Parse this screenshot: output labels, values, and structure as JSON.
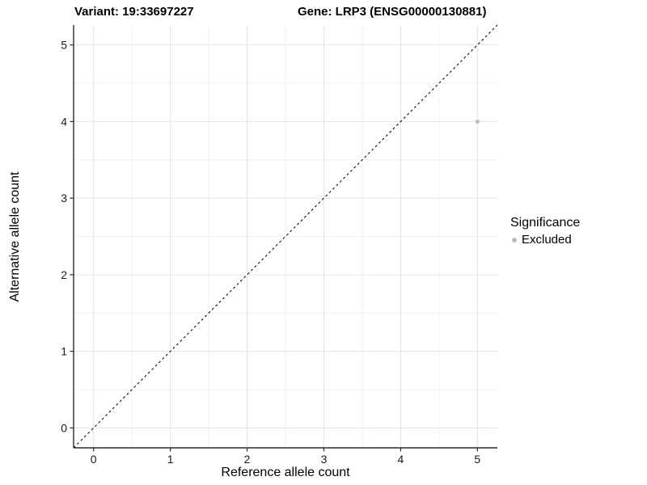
{
  "titles": {
    "left": "Variant: 19:33697227",
    "right": "Gene: LRP3 (ENSG00000130881)"
  },
  "chart_data": {
    "type": "scatter",
    "xlabel": "Reference allele count",
    "ylabel": "Alternative allele count",
    "xlim": [
      -0.26,
      5.26
    ],
    "ylim": [
      -0.26,
      5.26
    ],
    "x_ticks": [
      0,
      1,
      2,
      3,
      4,
      5
    ],
    "y_ticks": [
      0,
      1,
      2,
      3,
      4,
      5
    ],
    "x_minor": [
      0.5,
      1.5,
      2.5,
      3.5,
      4.5
    ],
    "y_minor": [
      0.5,
      1.5,
      2.5,
      3.5,
      4.5
    ],
    "grid": true,
    "points": [
      {
        "x": 5,
        "y": 4,
        "series": "Excluded"
      }
    ],
    "identity_line": {
      "style": "dashed",
      "slope": 1,
      "intercept": 0
    },
    "legend": {
      "title": "Significance",
      "position": "right",
      "entries": [
        {
          "label": "Excluded",
          "color": "#bdbdbd"
        }
      ]
    },
    "colors": {
      "point": "#bdbdbd",
      "grid_major": "#e3e3e3",
      "grid_minor": "#f1f1f1",
      "axis": "#2b2b2b",
      "dashed_line": "#111111",
      "tick_text": "#1a1a1a"
    }
  }
}
